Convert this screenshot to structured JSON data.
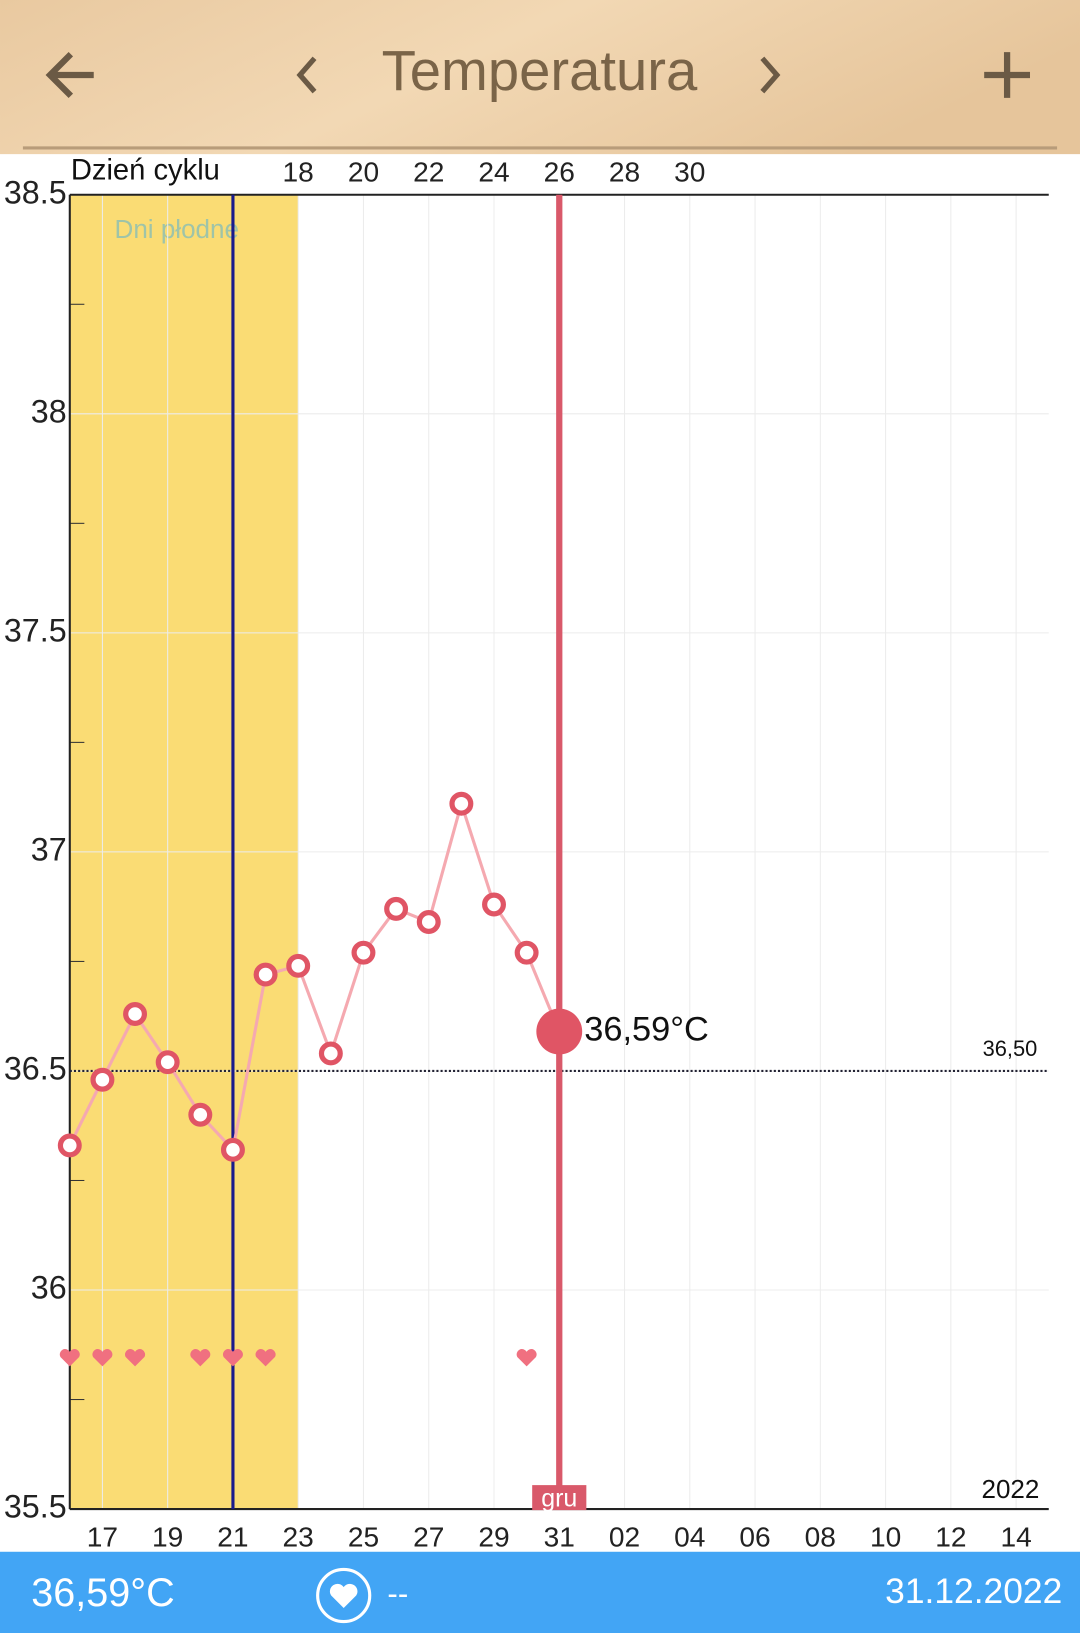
{
  "header": {
    "title": "Temperatura"
  },
  "chart_data": {
    "type": "line",
    "cycle_label": "Dzień cyklu",
    "fertile_label": "Dni płodne",
    "fertile_band": [
      0,
      7
    ],
    "ovulation_x": 5,
    "selected_x": 15,
    "selected_label": "36,59°C",
    "month_label": "gru",
    "year_label": "2022",
    "categories": [
      null,
      "17",
      null,
      "19",
      null,
      "21",
      null,
      "23",
      null,
      "25",
      null,
      "27",
      null,
      "29",
      null,
      "31",
      null,
      "02",
      null,
      "04",
      null,
      "06",
      null,
      "08",
      null,
      "10",
      null,
      "12",
      null,
      "14",
      null
    ],
    "cycle_days": [
      null,
      null,
      null,
      null,
      null,
      null,
      null,
      "18",
      null,
      "20",
      null,
      "22",
      null,
      "24",
      null,
      "26",
      null,
      "28",
      null,
      "30",
      null,
      null,
      null,
      null,
      null,
      null,
      null,
      null,
      null,
      null,
      null
    ],
    "series": [
      {
        "color": "#e05565",
        "values": [
          36.33,
          36.48,
          36.63,
          36.52,
          36.4,
          36.32,
          36.72,
          36.74,
          36.54,
          36.77,
          36.87,
          36.84,
          37.11,
          36.88,
          36.77,
          36.59,
          null,
          null,
          null,
          null,
          null,
          null,
          null,
          null,
          null,
          null,
          null,
          null,
          null,
          null,
          null
        ]
      }
    ],
    "hearts": [
      true,
      true,
      true,
      false,
      true,
      true,
      true,
      false,
      false,
      false,
      false,
      false,
      false,
      false,
      true,
      false,
      false,
      false,
      false,
      false,
      false,
      false,
      false,
      false,
      false,
      false,
      false,
      false,
      false,
      false,
      false
    ],
    "reference": {
      "value": 36.5,
      "label": "36,50"
    },
    "ylim": [
      35.5,
      38.5
    ],
    "yticks": [
      35.5,
      36,
      36.5,
      37,
      37.5,
      38,
      38.5
    ],
    "minor_yticks": [
      35.75,
      36.25,
      36.75,
      37.25,
      37.75,
      38.25
    ],
    "grid": true
  },
  "footer": {
    "temperature": "36,59°C",
    "heart_value": "--",
    "date": "31.12.2022"
  }
}
